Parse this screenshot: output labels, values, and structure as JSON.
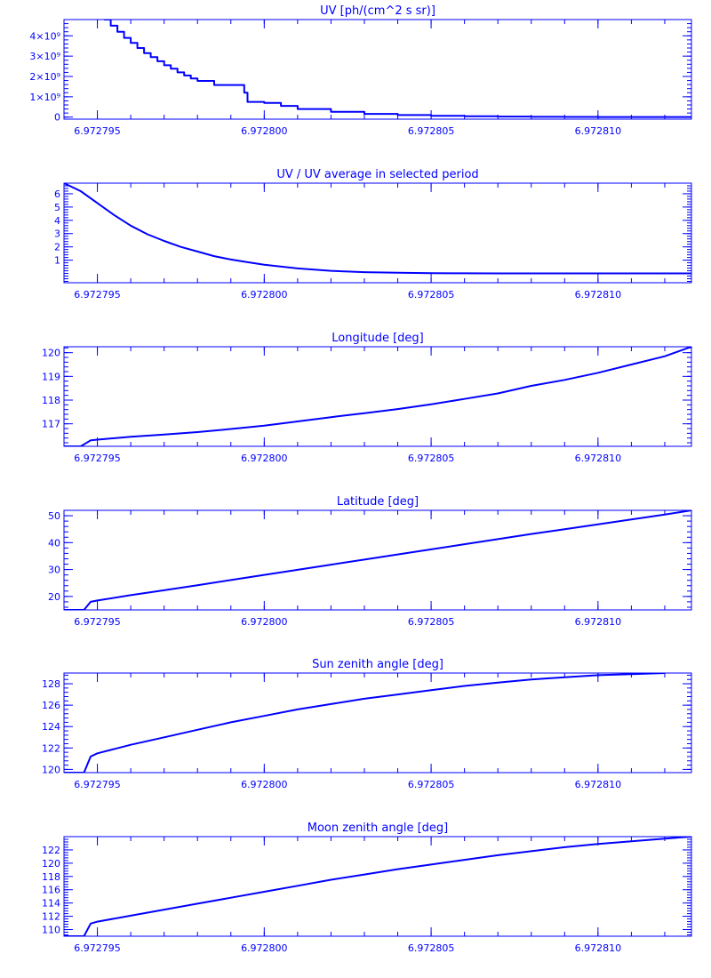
{
  "colors": {
    "ink": "#0000ff",
    "background": "#ffffff"
  },
  "chart_data": [
    {
      "type": "line",
      "title": "UV [ph/(cm^2 s sr)]",
      "xlabel": "",
      "ylabel": "",
      "xlim": [
        6.972794,
        6.9728128
      ],
      "ylim": [
        -100000000,
        4800000000
      ],
      "x_ticks": [
        6.972795,
        6.9728,
        6.972805,
        6.97281
      ],
      "x_tick_labels": [
        "6.972795",
        "6.972800",
        "6.972805",
        "6.972810"
      ],
      "y_ticks": [
        0,
        1000000000,
        2000000000,
        3000000000,
        4000000000
      ],
      "y_tick_labels": [
        "0",
        "1×10⁹",
        "2×10⁹",
        "3×10⁹",
        "4×10⁹"
      ],
      "step": true,
      "series": [
        {
          "x": [
            6.9727952,
            6.9727954,
            6.9727956,
            6.9727958,
            6.972796,
            6.9727962,
            6.9727964,
            6.9727966,
            6.9727968,
            6.972797,
            6.9727972,
            6.9727974,
            6.9727976,
            6.9727978,
            6.972798,
            6.9727985,
            6.9727994,
            6.9727995,
            6.9728,
            6.9728005,
            6.972801,
            6.972802,
            6.972803,
            6.972804,
            6.972805,
            6.972806,
            6.972807,
            6.972808,
            6.972809,
            6.97281,
            6.972811,
            6.9728128
          ],
          "values": [
            4800000000,
            4500000000,
            4200000000,
            3900000000,
            3650000000,
            3400000000,
            3150000000,
            2950000000,
            2750000000,
            2550000000,
            2380000000,
            2200000000,
            2050000000,
            1900000000,
            1780000000,
            1580000000,
            1200000000,
            750000000,
            700000000,
            550000000,
            400000000,
            260000000,
            160000000,
            100000000,
            60000000,
            40000000,
            25000000,
            15000000,
            10000000,
            6000000,
            4000000,
            3000000
          ]
        }
      ]
    },
    {
      "type": "line",
      "title": "UV / UV average in selected period",
      "xlabel": "",
      "ylabel": "",
      "xlim": [
        6.972794,
        6.9728128
      ],
      "ylim": [
        -0.7,
        6.8
      ],
      "x_ticks": [
        6.972795,
        6.9728,
        6.972805,
        6.97281
      ],
      "x_tick_labels": [
        "6.972795",
        "6.972800",
        "6.972805",
        "6.972810"
      ],
      "y_ticks": [
        1,
        2,
        3,
        4,
        5,
        6
      ],
      "y_tick_labels": [
        "1",
        "2",
        "3",
        "4",
        "5",
        "6"
      ],
      "step": false,
      "series": [
        {
          "x": [
            6.972794,
            6.9727945,
            6.972795,
            6.9727955,
            6.972796,
            6.9727965,
            6.972797,
            6.9727975,
            6.972798,
            6.9727985,
            6.972799,
            6.9727995,
            6.9728,
            6.972801,
            6.972802,
            6.972803,
            6.972804,
            6.972805,
            6.972806,
            6.972807,
            6.972808,
            6.972809,
            6.97281,
            6.972811,
            6.9728128
          ],
          "values": [
            6.8,
            6.2,
            5.3,
            4.4,
            3.6,
            2.95,
            2.45,
            2.0,
            1.65,
            1.3,
            1.05,
            0.85,
            0.65,
            0.38,
            0.2,
            0.1,
            0.05,
            0.02,
            0.01,
            0.0,
            0.0,
            0.0,
            0.0,
            0.0,
            0.0
          ]
        }
      ]
    },
    {
      "type": "line",
      "title": "Longitude [deg]",
      "xlabel": "",
      "ylabel": "",
      "xlim": [
        6.972794,
        6.9728128
      ],
      "ylim": [
        116.05,
        120.25
      ],
      "x_ticks": [
        6.972795,
        6.9728,
        6.972805,
        6.97281
      ],
      "x_tick_labels": [
        "6.972795",
        "6.972800",
        "6.972805",
        "6.972810"
      ],
      "y_ticks": [
        117,
        118,
        119,
        120
      ],
      "y_tick_labels": [
        "117",
        "118",
        "119",
        "120"
      ],
      "step": false,
      "series": [
        {
          "x": [
            6.972794,
            6.9727945,
            6.9727948,
            6.972795,
            6.972796,
            6.972797,
            6.972798,
            6.972799,
            6.9728,
            6.972801,
            6.972802,
            6.972803,
            6.972804,
            6.972805,
            6.972806,
            6.972807,
            6.972808,
            6.972809,
            6.97281,
            6.972811,
            6.972812,
            6.9728128
          ],
          "values": [
            116.05,
            116.05,
            116.3,
            116.33,
            116.45,
            116.55,
            116.65,
            116.78,
            116.92,
            117.1,
            117.28,
            117.45,
            117.62,
            117.82,
            118.05,
            118.28,
            118.6,
            118.85,
            119.15,
            119.5,
            119.85,
            120.25
          ]
        }
      ]
    },
    {
      "type": "line",
      "title": "Latitude [deg]",
      "xlabel": "",
      "ylabel": "",
      "xlim": [
        6.972794,
        6.9728128
      ],
      "ylim": [
        15,
        52
      ],
      "x_ticks": [
        6.972795,
        6.9728,
        6.972805,
        6.97281
      ],
      "x_tick_labels": [
        "6.972795",
        "6.972800",
        "6.972805",
        "6.972810"
      ],
      "y_ticks": [
        20,
        30,
        40,
        50
      ],
      "y_tick_labels": [
        "20",
        "30",
        "40",
        "50"
      ],
      "step": false,
      "series": [
        {
          "x": [
            6.972794,
            6.9727946,
            6.9727948,
            6.972795,
            6.972796,
            6.972797,
            6.972798,
            6.972799,
            6.9728,
            6.972801,
            6.972802,
            6.972803,
            6.972804,
            6.972805,
            6.972806,
            6.972807,
            6.972808,
            6.972809,
            6.97281,
            6.972811,
            6.972812,
            6.9728128
          ],
          "values": [
            15,
            15,
            18,
            18.5,
            20.5,
            22.3,
            24.2,
            26.1,
            28.0,
            29.9,
            31.8,
            33.7,
            35.6,
            37.5,
            39.4,
            41.3,
            43.2,
            45.0,
            46.8,
            48.6,
            50.4,
            52
          ]
        }
      ]
    },
    {
      "type": "line",
      "title": "Sun zenith angle [deg]",
      "xlabel": "",
      "ylabel": "",
      "xlim": [
        6.972794,
        6.9728128
      ],
      "ylim": [
        119.7,
        129
      ],
      "x_ticks": [
        6.972795,
        6.9728,
        6.972805,
        6.97281
      ],
      "x_tick_labels": [
        "6.972795",
        "6.972800",
        "6.972805",
        "6.972810"
      ],
      "y_ticks": [
        120,
        122,
        124,
        126,
        128
      ],
      "y_tick_labels": [
        "120",
        "122",
        "124",
        "126",
        "128"
      ],
      "step": false,
      "series": [
        {
          "x": [
            6.972794,
            6.9727946,
            6.9727948,
            6.972795,
            6.972796,
            6.972797,
            6.972798,
            6.972799,
            6.9728,
            6.972801,
            6.972802,
            6.972803,
            6.972804,
            6.972805,
            6.972806,
            6.972807,
            6.972808,
            6.972809,
            6.97281,
            6.972811,
            6.972812
          ],
          "values": [
            119.7,
            119.7,
            121.2,
            121.5,
            122.3,
            123.0,
            123.7,
            124.4,
            125.0,
            125.6,
            126.1,
            126.6,
            127.0,
            127.4,
            127.8,
            128.1,
            128.4,
            128.6,
            128.8,
            128.9,
            129.0
          ]
        }
      ]
    },
    {
      "type": "line",
      "title": "Moon zenith angle [deg]",
      "xlabel": "",
      "ylabel": "",
      "xlim": [
        6.972794,
        6.9728128
      ],
      "ylim": [
        109,
        124
      ],
      "x_ticks": [
        6.972795,
        6.9728,
        6.972805,
        6.97281
      ],
      "x_tick_labels": [
        "6.972795",
        "6.972800",
        "6.972805",
        "6.972810"
      ],
      "y_ticks": [
        110,
        112,
        114,
        116,
        118,
        120,
        122
      ],
      "y_tick_labels": [
        "110",
        "112",
        "114",
        "116",
        "118",
        "120",
        "122"
      ],
      "step": false,
      "series": [
        {
          "x": [
            6.972794,
            6.9727946,
            6.9727948,
            6.972795,
            6.972796,
            6.972797,
            6.972798,
            6.972799,
            6.9728,
            6.972801,
            6.972802,
            6.972803,
            6.972804,
            6.972805,
            6.972806,
            6.972807,
            6.972808,
            6.972809,
            6.97281,
            6.972811,
            6.972812,
            6.9728128
          ],
          "values": [
            109,
            109,
            110.9,
            111.2,
            112.1,
            113.0,
            113.9,
            114.8,
            115.7,
            116.6,
            117.5,
            118.3,
            119.1,
            119.8,
            120.5,
            121.2,
            121.8,
            122.4,
            122.9,
            123.3,
            123.7,
            124.0
          ]
        }
      ]
    }
  ]
}
